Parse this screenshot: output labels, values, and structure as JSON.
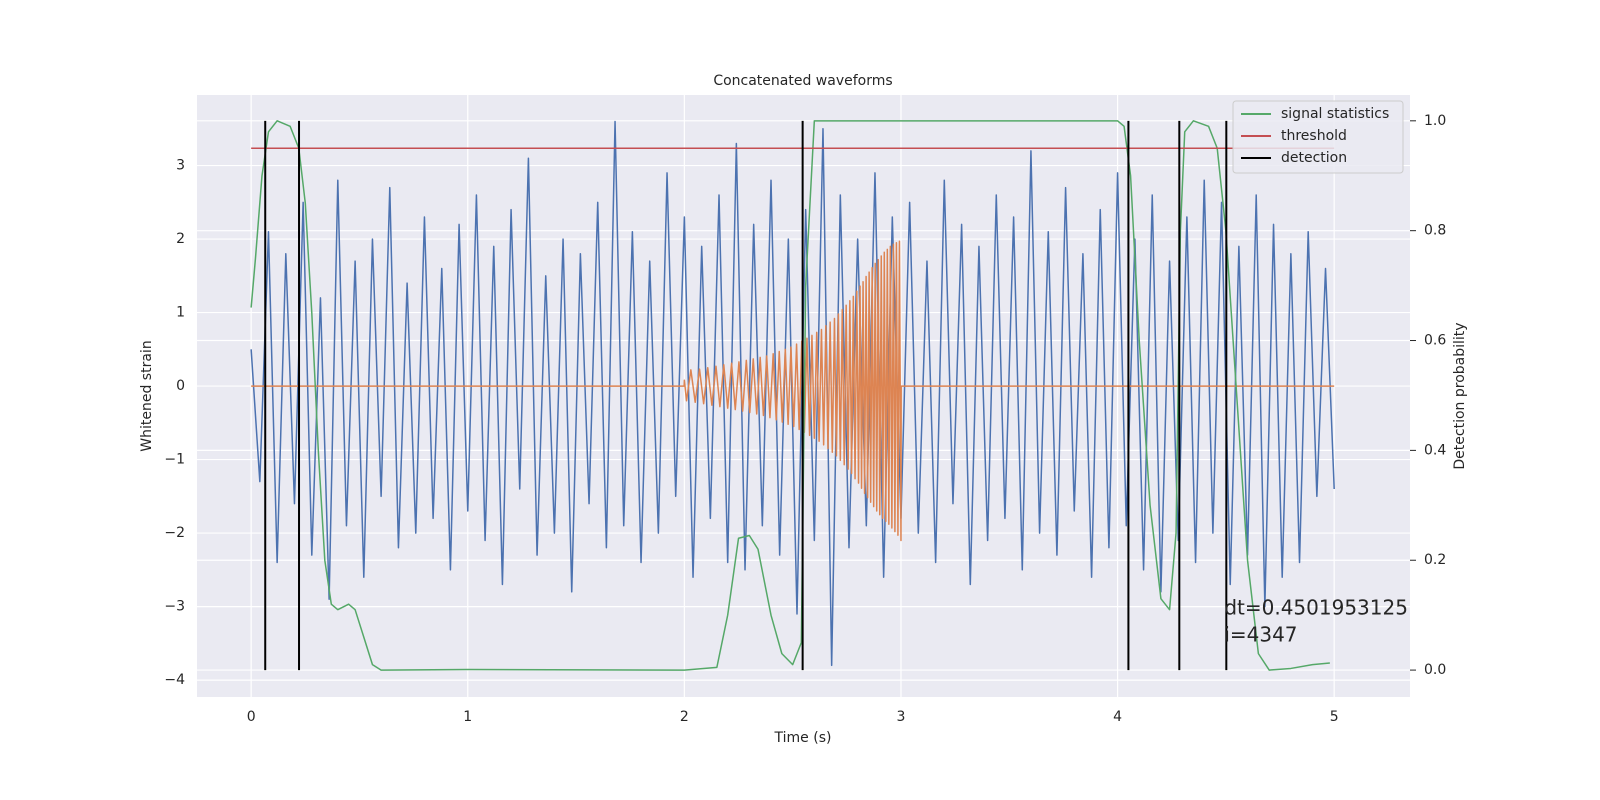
{
  "chart_data": {
    "type": "line",
    "title": "Concatenated waveforms",
    "xlabel": "Time (s)",
    "ylabel": "Whitened strain",
    "y2label": "Detection probability",
    "xlim": [
      -0.25,
      5.35
    ],
    "ylim": [
      -4.23,
      3.96
    ],
    "y2lim": [
      -0.049,
      1.047
    ],
    "xticks": [
      0,
      1,
      2,
      3,
      4,
      5
    ],
    "yticks": [
      {
        "value": -4,
        "label": "−4"
      },
      {
        "value": -3,
        "label": "−3"
      },
      {
        "value": -2,
        "label": "−2"
      },
      {
        "value": -1,
        "label": "−1"
      },
      0,
      1,
      2,
      3
    ],
    "y2ticks": [
      {
        "value": 0,
        "label": "0.0"
      },
      {
        "value": 0.2,
        "label": "0.2"
      },
      {
        "value": 0.4,
        "label": "0.4"
      },
      {
        "value": 0.6,
        "label": "0.6"
      },
      {
        "value": 0.8,
        "label": "0.8"
      },
      {
        "value": 1,
        "label": "1.0"
      }
    ],
    "grid": true,
    "legend": "upper right",
    "series": [
      {
        "color": "#4c72b0",
        "x": [
          0,
          0.04,
          0.08,
          0.12,
          0.16,
          0.2,
          0.24,
          0.28,
          0.32,
          0.36,
          0.4,
          0.44,
          0.48,
          0.52,
          0.56,
          0.6,
          0.64,
          0.68,
          0.72,
          0.76,
          0.8,
          0.84,
          0.88,
          0.92,
          0.96,
          1,
          1.04,
          1.08,
          1.12,
          1.16,
          1.2,
          1.24,
          1.28,
          1.32,
          1.36,
          1.4,
          1.44,
          1.48,
          1.52,
          1.56,
          1.6,
          1.64,
          1.68,
          1.72,
          1.76,
          1.8,
          1.84,
          1.88,
          1.92,
          1.96,
          2,
          2.04,
          2.08,
          2.12,
          2.16,
          2.2,
          2.24,
          2.28,
          2.32,
          2.36,
          2.4,
          2.44,
          2.48,
          2.52,
          2.56,
          2.6,
          2.64,
          2.68,
          2.72,
          2.76,
          2.8,
          2.84,
          2.88,
          2.92,
          2.96,
          3,
          3.04,
          3.08,
          3.12,
          3.16,
          3.2,
          3.24,
          3.28,
          3.32,
          3.36,
          3.4,
          3.44,
          3.48,
          3.52,
          3.56,
          3.6,
          3.64,
          3.68,
          3.72,
          3.76,
          3.8,
          3.84,
          3.88,
          3.92,
          3.96,
          4,
          4.04,
          4.08,
          4.12,
          4.16,
          4.2,
          4.24,
          4.28,
          4.32,
          4.36,
          4.4,
          4.44,
          4.48,
          4.52,
          4.56,
          4.6,
          4.64,
          4.68,
          4.72,
          4.76,
          4.8,
          4.84,
          4.88,
          4.92,
          4.96,
          5
        ],
        "values": [
          0.5,
          -1.3,
          2.1,
          -2.4,
          1.8,
          -1.6,
          2.5,
          -2.3,
          1.2,
          -2.9,
          2.8,
          -1.9,
          1.7,
          -2.6,
          2.0,
          -1.5,
          2.7,
          -2.2,
          1.4,
          -2.0,
          2.3,
          -1.8,
          1.6,
          -2.5,
          2.2,
          -1.7,
          2.6,
          -2.1,
          1.9,
          -2.7,
          2.4,
          -1.4,
          3.1,
          -2.3,
          1.5,
          -2.0,
          2.0,
          -2.8,
          1.8,
          -1.6,
          2.5,
          -2.2,
          3.6,
          -1.9,
          2.1,
          -2.4,
          1.7,
          -2.0,
          2.9,
          -1.5,
          2.3,
          -2.6,
          1.9,
          -1.8,
          2.6,
          -2.4,
          3.3,
          -2.5,
          2.2,
          -1.9,
          2.8,
          -2.3,
          2.0,
          -3.1,
          2.4,
          -2.1,
          3.5,
          -3.8,
          2.6,
          -2.2,
          2.0,
          -1.9,
          2.9,
          -2.6,
          2.3,
          -1.8,
          2.5,
          -2.0,
          1.7,
          -2.4,
          2.8,
          -1.6,
          2.2,
          -2.7,
          1.9,
          -2.1,
          2.6,
          -1.8,
          2.3,
          -2.5,
          3.2,
          -2.0,
          2.1,
          -2.3,
          2.7,
          -1.7,
          1.8,
          -2.6,
          2.4,
          -2.2,
          2.9,
          -1.9,
          2.0,
          -2.5,
          2.6,
          -2.8,
          1.7,
          -2.1,
          2.3,
          -2.4,
          2.8,
          -2.0,
          2.5,
          -2.7,
          1.9,
          -2.3,
          2.6,
          -3.0,
          2.2,
          -2.6,
          1.8,
          -2.4,
          2.1,
          -1.5,
          1.6,
          -1.4
        ]
      },
      {
        "color": "#dd8452",
        "x": [
          0,
          1.999,
          2.0,
          2.01,
          2.03,
          2.05,
          2.07,
          2.089,
          2.108,
          2.127,
          2.146,
          2.164,
          2.182,
          2.2,
          2.218,
          2.235,
          2.252,
          2.269,
          2.286,
          2.302,
          2.318,
          2.334,
          2.35,
          2.365,
          2.38,
          2.395,
          2.41,
          2.424,
          2.438,
          2.452,
          2.466,
          2.479,
          2.492,
          2.505,
          2.518,
          2.53,
          2.542,
          2.554,
          2.566,
          2.578,
          2.589,
          2.6,
          2.611,
          2.622,
          2.633,
          2.643,
          2.653,
          2.663,
          2.673,
          2.683,
          2.693,
          2.702,
          2.711,
          2.72,
          2.729,
          2.738,
          2.747,
          2.756,
          2.764,
          2.772,
          2.78,
          2.788,
          2.796,
          2.804,
          2.811,
          2.818,
          2.825,
          2.832,
          2.839,
          2.846,
          2.853,
          2.86,
          2.867,
          2.874,
          2.881,
          2.888,
          2.895,
          2.902,
          2.909,
          2.916,
          2.923,
          2.93,
          2.937,
          2.944,
          2.951,
          2.958,
          2.965,
          2.972,
          2.979,
          2.986,
          2.993,
          3.0,
          3.001,
          5
        ],
        "values": [
          0,
          0,
          0.08,
          -0.2,
          0.22,
          -0.22,
          0.23,
          -0.24,
          0.25,
          -0.26,
          0.27,
          -0.28,
          0.29,
          -0.3,
          0.31,
          -0.32,
          0.33,
          -0.34,
          0.35,
          -0.36,
          0.37,
          -0.38,
          0.39,
          -0.4,
          0.41,
          -0.43,
          0.44,
          -0.46,
          0.47,
          -0.49,
          0.5,
          -0.52,
          0.53,
          -0.55,
          0.57,
          -0.59,
          0.61,
          -0.63,
          0.65,
          -0.67,
          0.69,
          -0.71,
          0.73,
          -0.75,
          0.77,
          -0.8,
          0.82,
          -0.85,
          0.87,
          -0.9,
          0.92,
          -0.95,
          0.98,
          -1.01,
          1.04,
          -1.07,
          1.1,
          -1.13,
          1.16,
          -1.19,
          1.22,
          -1.26,
          1.29,
          -1.32,
          1.36,
          -1.39,
          1.42,
          -1.46,
          1.49,
          -1.52,
          1.55,
          -1.58,
          1.61,
          -1.64,
          1.67,
          -1.7,
          1.72,
          -1.75,
          1.77,
          -1.8,
          1.82,
          -1.84,
          1.86,
          -1.88,
          1.9,
          -1.93,
          1.93,
          -1.98,
          1.95,
          -2.03,
          1.97,
          -2.1,
          0,
          0
        ]
      },
      {
        "name": "signal statistics",
        "color": "#55a868",
        "axis": "y2",
        "x": [
          0,
          0.02,
          0.05,
          0.08,
          0.12,
          0.18,
          0.22,
          0.25,
          0.28,
          0.31,
          0.34,
          0.37,
          0.4,
          0.45,
          0.48,
          0.52,
          0.56,
          0.6,
          1.0,
          2.0,
          2.15,
          2.2,
          2.25,
          2.3,
          2.34,
          2.4,
          2.45,
          2.5,
          2.54,
          2.56,
          2.6,
          2.8,
          3.0,
          4.0,
          4.03,
          4.06,
          4.1,
          4.15,
          4.2,
          4.24,
          4.27,
          4.29,
          4.31,
          4.35,
          4.42,
          4.46,
          4.5,
          4.55,
          4.6,
          4.65,
          4.7,
          4.8,
          4.9,
          4.98
        ],
        "values": [
          0.66,
          0.75,
          0.9,
          0.98,
          1.0,
          0.99,
          0.95,
          0.85,
          0.65,
          0.4,
          0.2,
          0.12,
          0.11,
          0.12,
          0.11,
          0.06,
          0.01,
          0.0,
          0.001,
          0.0,
          0.005,
          0.1,
          0.24,
          0.245,
          0.22,
          0.1,
          0.03,
          0.01,
          0.05,
          0.7,
          1.0,
          1.0,
          1.0,
          1.0,
          0.99,
          0.9,
          0.6,
          0.3,
          0.13,
          0.11,
          0.25,
          0.8,
          0.98,
          1.0,
          0.99,
          0.95,
          0.8,
          0.5,
          0.2,
          0.03,
          0.0,
          0.003,
          0.01,
          0.013
        ]
      },
      {
        "name": "threshold",
        "color": "#c44e52",
        "axis": "y2",
        "x": [
          0,
          5
        ],
        "values": [
          0.95,
          0.95
        ]
      }
    ],
    "detections": {
      "name": "detection",
      "color": "#000000",
      "axis": "y2",
      "ymin": 0,
      "ymax": 1,
      "x": [
        0.065,
        0.221,
        2.546,
        4.05,
        4.285,
        4.502
      ]
    },
    "annotation": [
      "dt=0.4501953125",
      " i=4347"
    ]
  }
}
